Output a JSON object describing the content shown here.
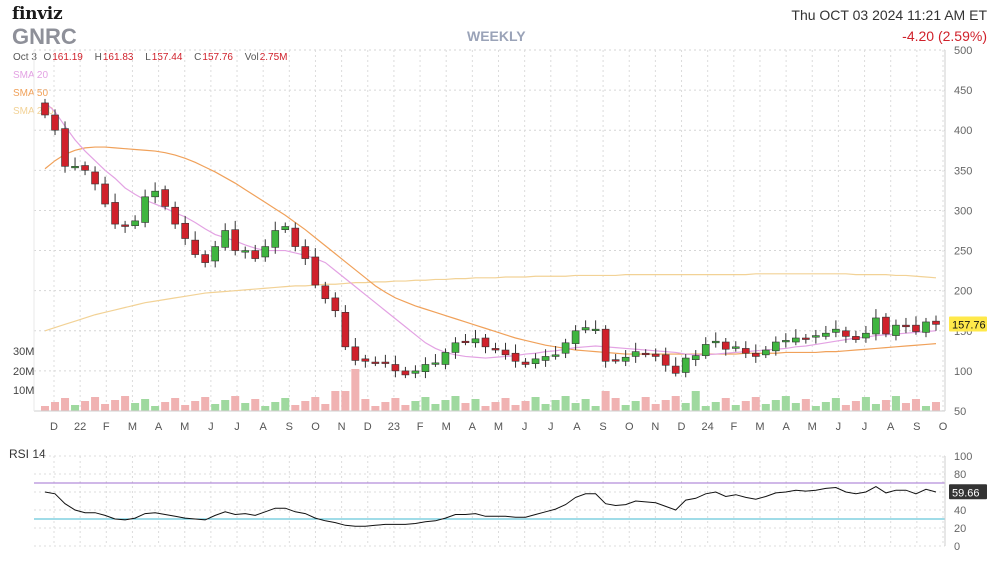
{
  "header": {
    "logo": "finviz",
    "ticker": "GNRC",
    "period": "WEEKLY",
    "datetime": "Thu OCT 03 2024 11:21 AM ET",
    "change": "-4.20 (2.59%)"
  },
  "ohlc": {
    "date": "Oct 3",
    "open_label": "O",
    "open": "161.19",
    "high_label": "H",
    "high": "161.83",
    "low_label": "L",
    "low": "157.44",
    "close_label": "C",
    "close": "157.76",
    "vol_label": "Vol",
    "vol": "2.75M"
  },
  "legend": {
    "sma20": "SMA 20",
    "sma50": "SMA 50",
    "sma200": "SMA 200"
  },
  "colors": {
    "up": "#3fb53f",
    "down": "#d0212b",
    "vol_up": "#9fd99f",
    "vol_down": "#f0b2b2",
    "sma20": "#e3a2e3",
    "sma50": "#f0a15a",
    "sma200": "#f2d296",
    "rsi_line": "#111111",
    "rsi_over": "#a070d0",
    "rsi_under": "#40b8d0",
    "last_price_bg": "#ffe94a"
  },
  "chart_data": [
    {
      "type": "candlestick",
      "title": "GNRC",
      "interval": "WEEKLY",
      "y_axis": {
        "ticks": [
          50,
          100,
          150,
          200,
          250,
          300,
          350,
          400,
          450,
          500
        ],
        "position": "right"
      },
      "ylim": [
        50,
        500
      ],
      "x_labels": [
        "D",
        "22",
        "F",
        "M",
        "A",
        "M",
        "J",
        "J",
        "A",
        "S",
        "O",
        "N",
        "D",
        "23",
        "F",
        "M",
        "A",
        "M",
        "J",
        "J",
        "A",
        "S",
        "O",
        "N",
        "D",
        "24",
        "F",
        "M",
        "A",
        "M",
        "J",
        "J",
        "A",
        "S",
        "O"
      ],
      "last_price": "157.76",
      "close": [
        419,
        400,
        355,
        355,
        350,
        333,
        308,
        283,
        280,
        287,
        317,
        324,
        305,
        283,
        265,
        245,
        235,
        255,
        275,
        250,
        250,
        240,
        255,
        275,
        280,
        255,
        240,
        207,
        190,
        175,
        130,
        113,
        112,
        110,
        110,
        100,
        95,
        100,
        108,
        110,
        123,
        135,
        136,
        140,
        130,
        126,
        120,
        112,
        108,
        115,
        118,
        120,
        135,
        150,
        154,
        152,
        112,
        113,
        117,
        124,
        121,
        118,
        107,
        97,
        116,
        119,
        133,
        137,
        127,
        130,
        122,
        118,
        126,
        136,
        138,
        141,
        140,
        144,
        147,
        152,
        143,
        139,
        147,
        166,
        146,
        157,
        155,
        149,
        161,
        158
      ],
      "sma20": [
        435,
        423,
        405,
        388,
        374,
        362,
        350,
        340,
        328,
        320,
        313,
        308,
        303,
        297,
        292,
        285,
        277,
        270,
        266,
        262,
        257,
        253,
        250,
        250,
        250,
        247,
        244,
        240,
        235,
        225,
        215,
        205,
        195,
        185,
        175,
        165,
        155,
        145,
        135,
        128,
        123,
        120,
        118,
        117,
        116,
        117,
        118,
        119,
        121,
        122,
        124,
        125,
        127,
        129,
        130,
        131,
        130,
        129,
        128,
        127,
        126,
        125,
        124,
        123,
        121,
        120,
        120,
        121,
        122,
        123,
        124,
        125,
        126,
        127,
        128,
        130,
        131,
        133,
        135,
        137,
        139,
        141,
        142,
        144,
        145,
        146,
        147,
        148,
        149,
        150
      ],
      "sma50": [
        352,
        362,
        370,
        375,
        378,
        379,
        379,
        378,
        377,
        376,
        375,
        374,
        372,
        369,
        365,
        360,
        354,
        348,
        341,
        334,
        326,
        318,
        310,
        302,
        294,
        285,
        276,
        266,
        256,
        246,
        236,
        226,
        216,
        206,
        198,
        191,
        186,
        181,
        177,
        173,
        169,
        165,
        161,
        157,
        153,
        149,
        145,
        141,
        138,
        135,
        132,
        130,
        128,
        126,
        125,
        124,
        123,
        122,
        121,
        121,
        121,
        121,
        121,
        121,
        121,
        121,
        121,
        121,
        121,
        121,
        122,
        122,
        122,
        122,
        123,
        123,
        123,
        123,
        124,
        124,
        125,
        126,
        127,
        128,
        129,
        130,
        131,
        132,
        133,
        134
      ],
      "sma200": [
        150,
        154,
        158,
        162,
        166,
        170,
        173,
        176,
        179,
        182,
        185,
        187,
        189,
        191,
        193,
        195,
        197,
        198,
        199,
        200,
        201,
        202,
        203,
        204,
        205,
        206,
        206,
        207,
        208,
        208,
        209,
        210,
        210,
        211,
        211,
        212,
        212,
        213,
        213,
        214,
        214,
        215,
        215,
        216,
        216,
        216,
        217,
        217,
        217,
        218,
        218,
        218,
        218,
        219,
        219,
        219,
        219,
        219,
        220,
        220,
        220,
        220,
        220,
        220,
        220,
        220,
        220,
        220,
        220,
        220,
        220,
        221,
        221,
        221,
        221,
        221,
        221,
        221,
        221,
        221,
        221,
        220,
        220,
        220,
        220,
        219,
        219,
        218,
        217,
        216
      ],
      "volume_axis": {
        "labels": [
          "10M",
          "20M",
          "30M"
        ]
      }
    },
    {
      "type": "line",
      "title": "RSI 14",
      "ylim": [
        0,
        100
      ],
      "y_ticks": [
        0,
        20,
        40,
        60,
        80,
        100
      ],
      "levels": [
        70,
        30
      ],
      "last_value": "59.66",
      "values": [
        60,
        58,
        47,
        40,
        37,
        37,
        34,
        30,
        29,
        31,
        36,
        37,
        35,
        33,
        31,
        30,
        29,
        34,
        38,
        35,
        36,
        34,
        38,
        42,
        42,
        38,
        36,
        31,
        28,
        26,
        23,
        22,
        22,
        23,
        24,
        24,
        24,
        25,
        27,
        28,
        31,
        35,
        35,
        36,
        33,
        33,
        33,
        32,
        32,
        35,
        38,
        41,
        46,
        54,
        58,
        58,
        47,
        45,
        46,
        50,
        49,
        48,
        44,
        40,
        51,
        53,
        58,
        60,
        55,
        57,
        54,
        52,
        55,
        59,
        60,
        62,
        61,
        62,
        64,
        65,
        60,
        58,
        60,
        66,
        59,
        62,
        62,
        58,
        63,
        60
      ]
    }
  ]
}
